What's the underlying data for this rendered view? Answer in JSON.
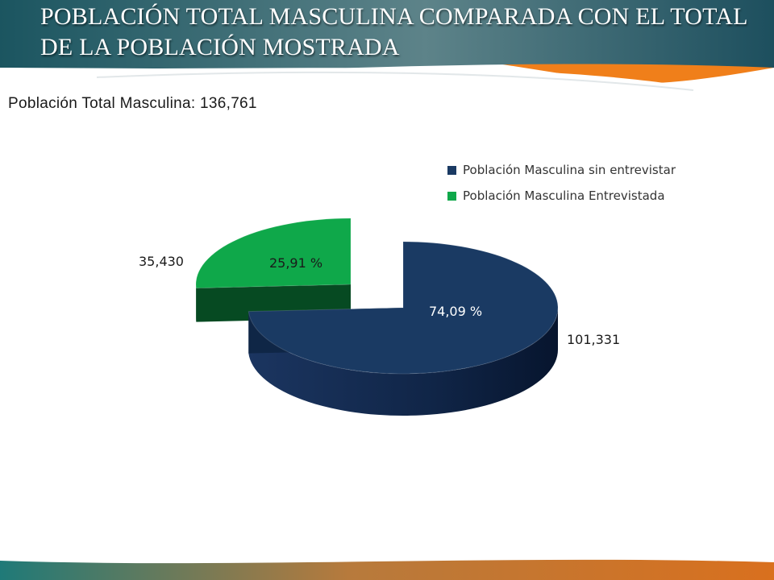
{
  "slide": {
    "title": "POBLACIÓN TOTAL MASCULINA COMPARADA CON EL TOTAL DE LA POBLACIÓN MOSTRADA",
    "subtitle_label": "Población Total Masculina:",
    "subtitle_value": "136,761"
  },
  "colors": {
    "header_teal": "#1d5560",
    "header_orange": "#f07f1a",
    "footer_teal": "#1f7a78",
    "footer_orange": "#d9701e"
  },
  "chart_data": {
    "type": "pie",
    "style": "3d-exploded",
    "legend_position": "top-right",
    "slices": [
      {
        "name": "Población Masculina sin entrevistar",
        "value": 101331,
        "value_label": "101,331",
        "percent_label": "74,09 %",
        "color": "#1a3a63",
        "side_color": "#0f2646"
      },
      {
        "name": "Población Masculina Entrevistada",
        "value": 35430,
        "value_label": "35,430",
        "percent_label": "25,91 %",
        "color": "#0fa84a",
        "side_color": "#064a22"
      }
    ]
  }
}
